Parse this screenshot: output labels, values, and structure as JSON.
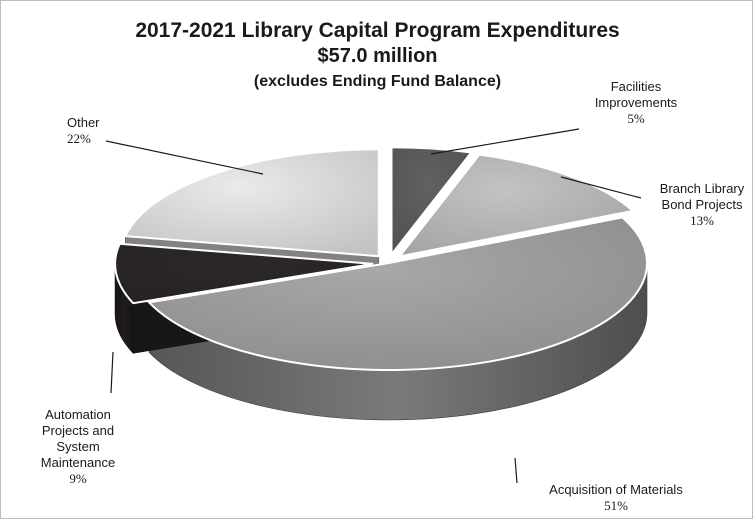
{
  "chart_data": {
    "type": "pie",
    "title": "2017-2021 Library Capital Program Expenditures",
    "subtitle": "$57.0 million",
    "note": "(excludes Ending Fund Balance)",
    "slices": [
      {
        "label_lines": [
          "Facilities",
          "Improvements"
        ],
        "value": 5,
        "value_label": "5%",
        "color": "#5a5a5a",
        "exploded": true
      },
      {
        "label_lines": [
          "Branch Library",
          "Bond Projects"
        ],
        "value": 13,
        "value_label": "13%",
        "color": "#b5b5b5",
        "exploded": true
      },
      {
        "label_lines": [
          "Acquisition of Materials"
        ],
        "value": 51,
        "value_label": "51%",
        "color": "#9c9c9c",
        "exploded": false
      },
      {
        "label_lines": [
          "Automation",
          "Projects and",
          "System",
          "Maintenance"
        ],
        "value": 9,
        "value_label": "9%",
        "color": "#2a2526",
        "exploded": true
      },
      {
        "label_lines": [
          "Other"
        ],
        "value": 22,
        "value_label": "22%",
        "color": "#d9d9d9",
        "exploded": true
      }
    ]
  }
}
